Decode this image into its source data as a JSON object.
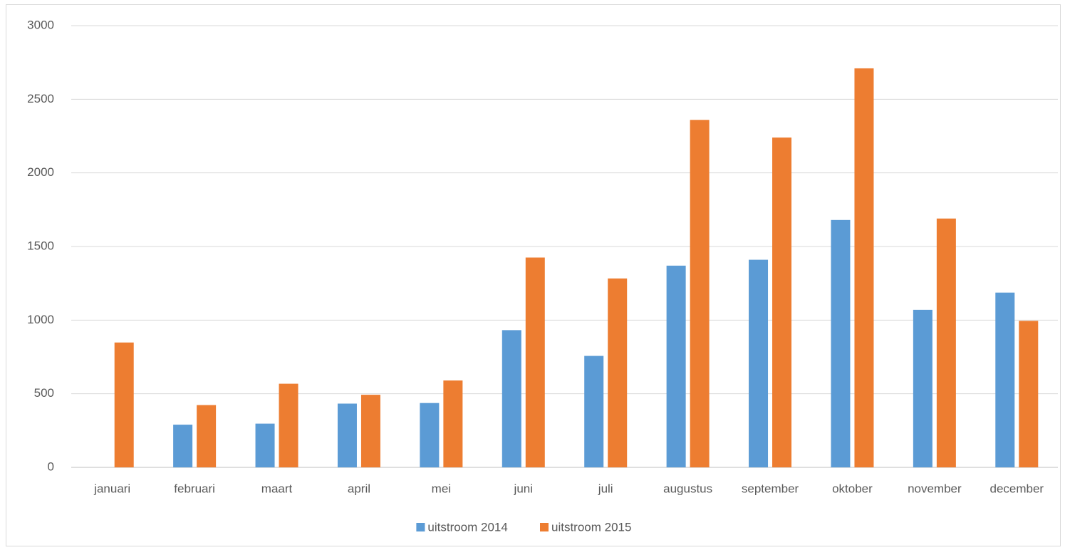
{
  "chart_data": {
    "type": "bar",
    "categories": [
      "januari",
      "februari",
      "maart",
      "april",
      "mei",
      "juni",
      "juli",
      "augustus",
      "september",
      "oktober",
      "november",
      "december"
    ],
    "series": [
      {
        "name": "uitstroom 2014",
        "color": "#5b9bd5",
        "values": [
          null,
          290,
          297,
          433,
          437,
          932,
          757,
          1370,
          1410,
          1680,
          1070,
          1187
        ]
      },
      {
        "name": "uitstroom 2015",
        "color": "#ed7d31",
        "values": [
          848,
          423,
          568,
          493,
          590,
          1425,
          1283,
          2360,
          2240,
          2710,
          1690,
          995
        ]
      }
    ],
    "ylim": [
      0,
      3000
    ],
    "yticks": [
      0,
      500,
      1000,
      1500,
      2000,
      2500,
      3000
    ],
    "grid": true,
    "legend": "bottom"
  }
}
